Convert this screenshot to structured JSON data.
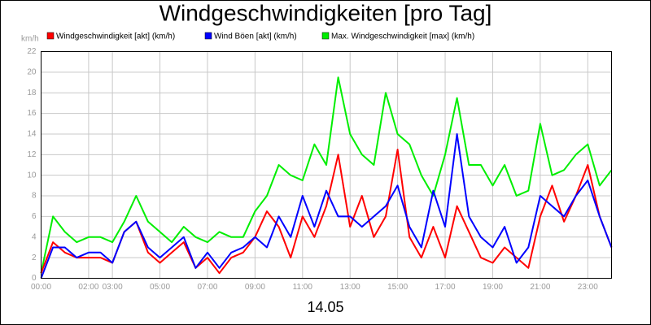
{
  "chart_data": {
    "type": "line",
    "title": "Windgeschwindigkeiten [pro Tag]",
    "y_label": "km/h",
    "x_label": "14.05",
    "x": [
      0,
      0.5,
      1,
      1.5,
      2,
      2.5,
      3,
      3.5,
      4,
      4.5,
      5,
      5.5,
      6,
      6.5,
      7,
      7.5,
      8,
      8.5,
      9,
      9.5,
      10,
      10.5,
      11,
      11.5,
      12,
      12.5,
      13,
      13.5,
      14,
      14.5,
      15,
      15.5,
      16,
      16.5,
      17,
      17.5,
      18,
      18.5,
      19,
      19.5,
      20,
      20.5,
      21,
      21.5,
      22,
      22.5,
      23,
      23.5,
      24
    ],
    "series": [
      {
        "name": "Windgeschwindigkeit [akt] (km/h)",
        "color": "#ff0000",
        "values": [
          0.5,
          3.5,
          2.5,
          2,
          2,
          2,
          1.5,
          4.5,
          5.5,
          2.5,
          1.5,
          2.5,
          3.5,
          1,
          2,
          0.5,
          2,
          2.5,
          4,
          6.5,
          5,
          2,
          6,
          4,
          7,
          12,
          5,
          8,
          4,
          6,
          12.5,
          4,
          2,
          5,
          2,
          7,
          4.5,
          2,
          1.5,
          3,
          2,
          1,
          6,
          9,
          5.5,
          8,
          11,
          6,
          3
        ]
      },
      {
        "name": "Wind Böen [akt] (km/h)",
        "color": "#0000ff",
        "values": [
          0,
          3,
          3,
          2,
          2.5,
          2.5,
          1.5,
          4.5,
          5.5,
          3,
          2,
          3,
          4,
          1,
          2.5,
          1,
          2.5,
          3,
          4,
          3,
          6,
          4,
          8,
          5,
          8.5,
          6,
          6,
          5,
          6,
          7,
          9,
          5,
          3,
          8.5,
          5,
          14,
          6,
          4,
          3,
          5,
          1.5,
          3,
          8,
          7,
          6,
          8,
          9.5,
          6,
          3
        ]
      },
      {
        "name": "Max. Windgeschwindigkeit [max] (km/h)",
        "color": "#00ee00",
        "values": [
          0.5,
          6,
          4.5,
          3.5,
          4,
          4,
          3.5,
          5.5,
          8,
          5.5,
          4.5,
          3.5,
          5,
          4,
          3.5,
          4.5,
          4,
          4,
          6.5,
          8,
          11,
          10,
          9.5,
          13,
          11,
          19.5,
          14,
          12,
          11,
          18,
          14,
          13,
          10,
          8,
          12,
          17.5,
          11,
          11,
          9,
          11,
          8,
          8.5,
          15,
          10,
          10.5,
          12,
          13,
          9,
          10.5
        ]
      }
    ],
    "xlim": [
      0,
      24
    ],
    "xticks": [
      {
        "value": 0,
        "label": "00:00"
      },
      {
        "value": 2,
        "label": "02:00"
      },
      {
        "value": 3,
        "label": "03:00"
      },
      {
        "value": 5,
        "label": "05:00"
      },
      {
        "value": 7,
        "label": "07:00"
      },
      {
        "value": 9,
        "label": "09:00"
      },
      {
        "value": 11,
        "label": "11:00"
      },
      {
        "value": 13,
        "label": "13:00"
      },
      {
        "value": 15,
        "label": "15:00"
      },
      {
        "value": 17,
        "label": "17:00"
      },
      {
        "value": 19,
        "label": "19:00"
      },
      {
        "value": 21,
        "label": "21:00"
      },
      {
        "value": 23,
        "label": "23:00"
      }
    ],
    "ylim": [
      0,
      22
    ],
    "yticks": [
      0,
      2,
      4,
      6,
      8,
      10,
      12,
      14,
      16,
      18,
      20,
      22
    ],
    "grid": true
  }
}
